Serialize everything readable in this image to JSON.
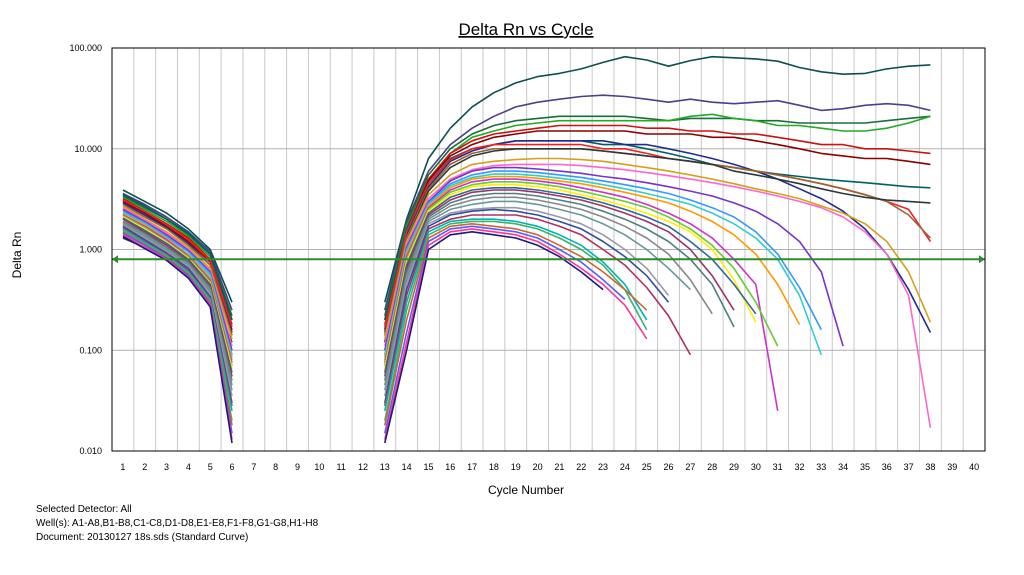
{
  "chart_data": {
    "type": "line",
    "title": "Delta Rn vs Cycle",
    "xlabel": "Cycle Number",
    "ylabel": "Delta Rn",
    "yscale": "log",
    "xlim": [
      0.5,
      40.5
    ],
    "ylim": [
      0.01,
      100
    ],
    "x_ticks": [
      "1",
      "2",
      "3",
      "4",
      "5",
      "6",
      "7",
      "8",
      "9",
      "10",
      "11",
      "12",
      "13",
      "14",
      "15",
      "16",
      "17",
      "18",
      "19",
      "20",
      "21",
      "22",
      "23",
      "24",
      "25",
      "26",
      "27",
      "28",
      "29",
      "30",
      "31",
      "32",
      "33",
      "34",
      "35",
      "36",
      "37",
      "38",
      "39",
      "40"
    ],
    "y_ticks": [
      "100.000",
      "10.000",
      "1.000",
      "0.100",
      "0.010"
    ],
    "grid": true,
    "threshold": {
      "value": 0.8,
      "color": "#2e8b2e"
    },
    "series": [
      {
        "color": "#0b4f4f",
        "early": [
          3.9,
          3.0,
          2.3,
          1.6,
          1.0,
          0.3
        ],
        "late": [
          0.3,
          2.0,
          8,
          16,
          26,
          36,
          45,
          52,
          56,
          62,
          72,
          82,
          76,
          66,
          75,
          82,
          80,
          78,
          74,
          64,
          58,
          55,
          56,
          62,
          66,
          68
        ]
      },
      {
        "color": "#4b3f8a",
        "early": [
          3.6,
          2.8,
          2.1,
          1.5,
          0.95,
          0.25
        ],
        "late": [
          0.25,
          1.9,
          6,
          11,
          16,
          21,
          26,
          29,
          31,
          33,
          34,
          33,
          31,
          29,
          31,
          29,
          28,
          29,
          30,
          27,
          24,
          25,
          27,
          28,
          27,
          24
        ]
      },
      {
        "color": "#1a6e3a",
        "early": [
          3.4,
          2.6,
          2.0,
          1.4,
          0.9,
          0.22
        ],
        "late": [
          0.22,
          1.8,
          5.5,
          10,
          14,
          17,
          19,
          20,
          21,
          21,
          21,
          21,
          20,
          19,
          20,
          20,
          20,
          19,
          19,
          18,
          18,
          18,
          18,
          19,
          20,
          21
        ]
      },
      {
        "color": "#22aa22",
        "early": [
          3.3,
          2.5,
          1.9,
          1.35,
          0.85,
          0.2
        ],
        "late": [
          0.2,
          1.7,
          5,
          9,
          13,
          15,
          17,
          18,
          19,
          19,
          19,
          19,
          19,
          19,
          21,
          22,
          20,
          19,
          17,
          17,
          16,
          15,
          15,
          16,
          18,
          21
        ]
      },
      {
        "color": "#cc1111",
        "early": [
          3.2,
          2.4,
          1.8,
          1.3,
          0.8,
          0.18
        ],
        "late": [
          0.18,
          1.6,
          5,
          9,
          12,
          14,
          15,
          16,
          17,
          17,
          17,
          17,
          16,
          16,
          15,
          15,
          14,
          14,
          13,
          12,
          11,
          11,
          10,
          10,
          9.5,
          9
        ]
      },
      {
        "color": "#8b0000",
        "early": [
          3.0,
          2.3,
          1.7,
          1.2,
          0.75,
          0.16
        ],
        "late": [
          0.16,
          1.5,
          4.8,
          8.5,
          11,
          13,
          14,
          15,
          15,
          15,
          15,
          15,
          14,
          14,
          14,
          13,
          13,
          12,
          11,
          10,
          9,
          8.5,
          8,
          8,
          7.5,
          7
        ]
      },
      {
        "color": "#006060",
        "early": [
          3.5,
          2.7,
          2.0,
          1.45,
          0.9,
          0.2
        ],
        "late": [
          0.2,
          1.6,
          4.5,
          8,
          10,
          11,
          12,
          12,
          12,
          12,
          11,
          11,
          10,
          9,
          8,
          7,
          6.5,
          6,
          5.6,
          5.3,
          5,
          4.8,
          4.6,
          4.4,
          4.2,
          4.1
        ]
      },
      {
        "color": "#1f2d8f",
        "early": [
          2.9,
          2.2,
          1.65,
          1.15,
          0.7,
          0.15
        ],
        "late": [
          0.15,
          1.4,
          4.2,
          7.5,
          9.5,
          11,
          12,
          12,
          12,
          12,
          12,
          11,
          11,
          10,
          9,
          8,
          7,
          6,
          5,
          4,
          3.2,
          2.4,
          1.6,
          0.9,
          0.4,
          0.15
        ]
      },
      {
        "color": "#ee2222",
        "early": [
          3.1,
          2.4,
          1.75,
          1.25,
          0.78,
          0.17
        ],
        "late": [
          0.17,
          1.5,
          4.5,
          7.8,
          10,
          11,
          11,
          11,
          11,
          11,
          10,
          10,
          9,
          8,
          7.5,
          7,
          6.5,
          6,
          5.5,
          5,
          4.5,
          4,
          3.5,
          3,
          2.5,
          1.2
        ]
      },
      {
        "color": "#996633",
        "early": [
          2.8,
          2.1,
          1.6,
          1.1,
          0.7,
          0.14
        ],
        "late": [
          0.14,
          1.3,
          4,
          7,
          9,
          10,
          10,
          10,
          10,
          10,
          9.5,
          9,
          8.5,
          8,
          7.5,
          7,
          6.5,
          6,
          5.5,
          5,
          4.5,
          4,
          3.5,
          3,
          2.2,
          1.3
        ]
      },
      {
        "color": "#2a3a3a",
        "early": [
          1.3,
          1.05,
          0.8,
          0.6,
          0.42,
          0.12
        ],
        "late": [
          0.12,
          1.2,
          3.8,
          6.5,
          8.5,
          9.5,
          10,
          10,
          10,
          10,
          9.5,
          9,
          8.5,
          8,
          7.5,
          7,
          6,
          5.5,
          5,
          4.5,
          4,
          3.6,
          3.3,
          3.1,
          3,
          2.9
        ]
      },
      {
        "color": "#d4a017",
        "early": [
          2.7,
          2.0,
          1.5,
          1.05,
          0.65,
          0.13
        ],
        "late": [
          0.13,
          1.2,
          3.5,
          5.5,
          7,
          7.5,
          7.8,
          8,
          8,
          7.8,
          7.5,
          7,
          6.5,
          6,
          5.5,
          5,
          4.5,
          4,
          3.6,
          3.2,
          2.7,
          2.3,
          1.8,
          1.2,
          0.6,
          0.19
        ]
      },
      {
        "color": "#ff66cc",
        "early": [
          2.6,
          1.95,
          1.45,
          1.0,
          0.62,
          0.11
        ],
        "late": [
          0.11,
          1.1,
          3.2,
          5,
          6.2,
          6.8,
          7,
          7,
          7,
          6.8,
          6.5,
          6.2,
          5.8,
          5.4,
          5,
          4.6,
          4.2,
          3.8,
          3.4,
          3,
          2.6,
          2.1,
          1.5,
          0.9,
          0.35,
          0.017
        ]
      },
      {
        "color": "#7733cc",
        "early": [
          2.5,
          1.9,
          1.4,
          0.98,
          0.6,
          0.1
        ],
        "late": [
          0.1,
          1.05,
          3,
          4.8,
          6,
          6.5,
          6.5,
          6.3,
          6,
          5.7,
          5.3,
          5,
          4.6,
          4.2,
          3.8,
          3.4,
          2.9,
          2.4,
          1.8,
          1.2,
          0.6,
          0.11
        ]
      },
      {
        "color": "#3399ff",
        "early": [
          2.4,
          1.85,
          1.35,
          0.95,
          0.58,
          0.09
        ],
        "late": [
          0.09,
          1.0,
          2.9,
          4.5,
          5.5,
          6,
          6,
          5.8,
          5.5,
          5.2,
          4.8,
          4.4,
          4,
          3.6,
          3.1,
          2.6,
          2.1,
          1.5,
          0.9,
          0.42,
          0.16
        ]
      },
      {
        "color": "#33cccc",
        "early": [
          2.3,
          1.8,
          1.3,
          0.9,
          0.55,
          0.085
        ],
        "late": [
          0.085,
          0.95,
          2.8,
          4.3,
          5.2,
          5.6,
          5.6,
          5.4,
          5.1,
          4.8,
          4.4,
          4,
          3.6,
          3.2,
          2.8,
          2.3,
          1.8,
          1.3,
          0.8,
          0.35,
          0.09
        ]
      },
      {
        "color": "#ff9900",
        "early": [
          2.25,
          1.75,
          1.28,
          0.88,
          0.52,
          0.08
        ],
        "late": [
          0.08,
          0.9,
          2.7,
          4.1,
          5,
          5.3,
          5.3,
          5.1,
          4.8,
          4.5,
          4.1,
          3.7,
          3.3,
          2.9,
          2.4,
          1.9,
          1.4,
          0.9,
          0.45,
          0.18
        ]
      },
      {
        "color": "#cc33cc",
        "early": [
          2.2,
          1.7,
          1.25,
          0.86,
          0.5,
          0.075
        ],
        "late": [
          0.075,
          0.85,
          2.6,
          3.9,
          4.7,
          5,
          5,
          4.8,
          4.5,
          4.1,
          3.7,
          3.3,
          2.8,
          2.3,
          1.8,
          1.3,
          0.8,
          0.45,
          0.025
        ]
      },
      {
        "color": "#66cc33",
        "early": [
          2.15,
          1.65,
          1.2,
          0.84,
          0.48,
          0.07
        ],
        "late": [
          0.07,
          0.8,
          2.5,
          3.7,
          4.4,
          4.7,
          4.7,
          4.5,
          4.2,
          3.8,
          3.4,
          3,
          2.6,
          2.1,
          1.6,
          1.1,
          0.65,
          0.3,
          0.11
        ]
      },
      {
        "color": "#ffee00",
        "early": [
          2.1,
          1.6,
          1.18,
          0.82,
          0.46,
          0.065
        ],
        "late": [
          0.065,
          0.75,
          2.4,
          3.5,
          4.2,
          4.4,
          4.4,
          4.2,
          3.9,
          3.5,
          3.1,
          2.7,
          2.3,
          1.9,
          1.5,
          1.0,
          0.5,
          0.19
        ]
      },
      {
        "color": "#336699",
        "early": [
          2.05,
          1.55,
          1.15,
          0.8,
          0.45,
          0.06
        ],
        "late": [
          0.06,
          0.7,
          2.3,
          3.3,
          3.9,
          4.1,
          4.1,
          3.9,
          3.6,
          3.3,
          2.9,
          2.5,
          2.1,
          1.7,
          1.2,
          0.8,
          0.45,
          0.23
        ]
      },
      {
        "color": "#993366",
        "early": [
          2.0,
          1.5,
          1.1,
          0.78,
          0.44,
          0.055
        ],
        "late": [
          0.055,
          0.65,
          2.2,
          3.1,
          3.7,
          3.9,
          3.9,
          3.7,
          3.4,
          3.1,
          2.7,
          2.3,
          1.9,
          1.5,
          1.0,
          0.55,
          0.25
        ]
      },
      {
        "color": "#4d8080",
        "early": [
          1.9,
          1.45,
          1.05,
          0.75,
          0.42,
          0.05
        ],
        "late": [
          0.05,
          0.6,
          2.1,
          2.9,
          3.4,
          3.6,
          3.6,
          3.4,
          3.1,
          2.8,
          2.4,
          2.0,
          1.6,
          1.2,
          0.8,
          0.45,
          0.17
        ]
      },
      {
        "color": "#888888",
        "early": [
          1.85,
          1.4,
          1.0,
          0.72,
          0.4,
          0.045
        ],
        "late": [
          0.045,
          0.55,
          2.0,
          2.7,
          3.1,
          3.3,
          3.3,
          3.1,
          2.8,
          2.5,
          2.1,
          1.7,
          1.3,
          0.9,
          0.5,
          0.23
        ]
      },
      {
        "color": "#669999",
        "early": [
          1.8,
          1.35,
          0.98,
          0.7,
          0.38,
          0.04
        ],
        "late": [
          0.04,
          0.5,
          1.9,
          2.5,
          2.8,
          3.0,
          3.0,
          2.8,
          2.5,
          2.2,
          1.8,
          1.4,
          1.0,
          0.65,
          0.4
        ]
      },
      {
        "color": "#9999aa",
        "early": [
          1.75,
          1.3,
          0.95,
          0.68,
          0.36,
          0.035
        ],
        "late": [
          0.035,
          0.45,
          1.8,
          2.3,
          2.5,
          2.6,
          2.6,
          2.4,
          2.1,
          1.8,
          1.4,
          1.0,
          0.65,
          0.35
        ]
      },
      {
        "color": "#2f4f9f",
        "early": [
          1.7,
          1.25,
          0.92,
          0.65,
          0.34,
          0.03
        ],
        "late": [
          0.03,
          0.4,
          1.7,
          2.2,
          2.4,
          2.5,
          2.4,
          2.2,
          1.9,
          1.6,
          1.2,
          0.85,
          0.55,
          0.3
        ]
      },
      {
        "color": "#b03060",
        "early": [
          1.65,
          1.2,
          0.9,
          0.62,
          0.33,
          0.028
        ],
        "late": [
          0.028,
          0.35,
          1.6,
          2.0,
          2.2,
          2.2,
          2.2,
          2.0,
          1.7,
          1.4,
          1.0,
          0.7,
          0.42,
          0.22,
          0.09
        ]
      },
      {
        "color": "#00b3b3",
        "early": [
          1.6,
          1.18,
          0.88,
          0.6,
          0.32,
          0.025
        ],
        "late": [
          0.025,
          0.3,
          1.5,
          1.9,
          2.0,
          2.0,
          1.9,
          1.7,
          1.4,
          1.1,
          0.75,
          0.45,
          0.2
        ]
      },
      {
        "color": "#3bb36b",
        "early": [
          1.55,
          1.15,
          0.86,
          0.58,
          0.31,
          0.02
        ],
        "late": [
          0.02,
          0.25,
          1.4,
          1.8,
          1.9,
          1.9,
          1.8,
          1.6,
          1.3,
          1.0,
          0.7,
          0.4,
          0.16
        ]
      },
      {
        "color": "#cc6633",
        "early": [
          1.5,
          1.12,
          0.84,
          0.56,
          0.3,
          0.018
        ],
        "late": [
          0.018,
          0.2,
          1.3,
          1.7,
          1.8,
          1.7,
          1.6,
          1.4,
          1.1,
          0.85,
          0.6,
          0.4,
          0.25
        ]
      },
      {
        "color": "#5a5aff",
        "early": [
          1.45,
          1.1,
          0.82,
          0.55,
          0.29,
          0.015
        ],
        "late": [
          0.015,
          0.15,
          1.2,
          1.6,
          1.7,
          1.6,
          1.5,
          1.3,
          1.0,
          0.75,
          0.5,
          0.32
        ]
      },
      {
        "color": "#ff3399",
        "early": [
          1.4,
          1.05,
          0.8,
          0.53,
          0.28,
          0.013
        ],
        "late": [
          0.013,
          0.12,
          1.1,
          1.5,
          1.6,
          1.5,
          1.4,
          1.2,
          0.9,
          0.65,
          0.45,
          0.28,
          0.13
        ]
      },
      {
        "color": "#1a1a7a",
        "early": [
          1.35,
          1.02,
          0.78,
          0.52,
          0.27,
          0.012
        ],
        "late": [
          0.012,
          0.1,
          1.0,
          1.4,
          1.5,
          1.4,
          1.3,
          1.1,
          0.85,
          0.6,
          0.4
        ]
      }
    ]
  },
  "footer": {
    "detector": "Selected Detector: All",
    "wells": "Well(s): A1-A8,B1-B8,C1-C8,D1-D8,E1-E8,F1-F8,G1-G8,H1-H8",
    "document": "Document: 20130127 18s.sds (Standard Curve)"
  }
}
